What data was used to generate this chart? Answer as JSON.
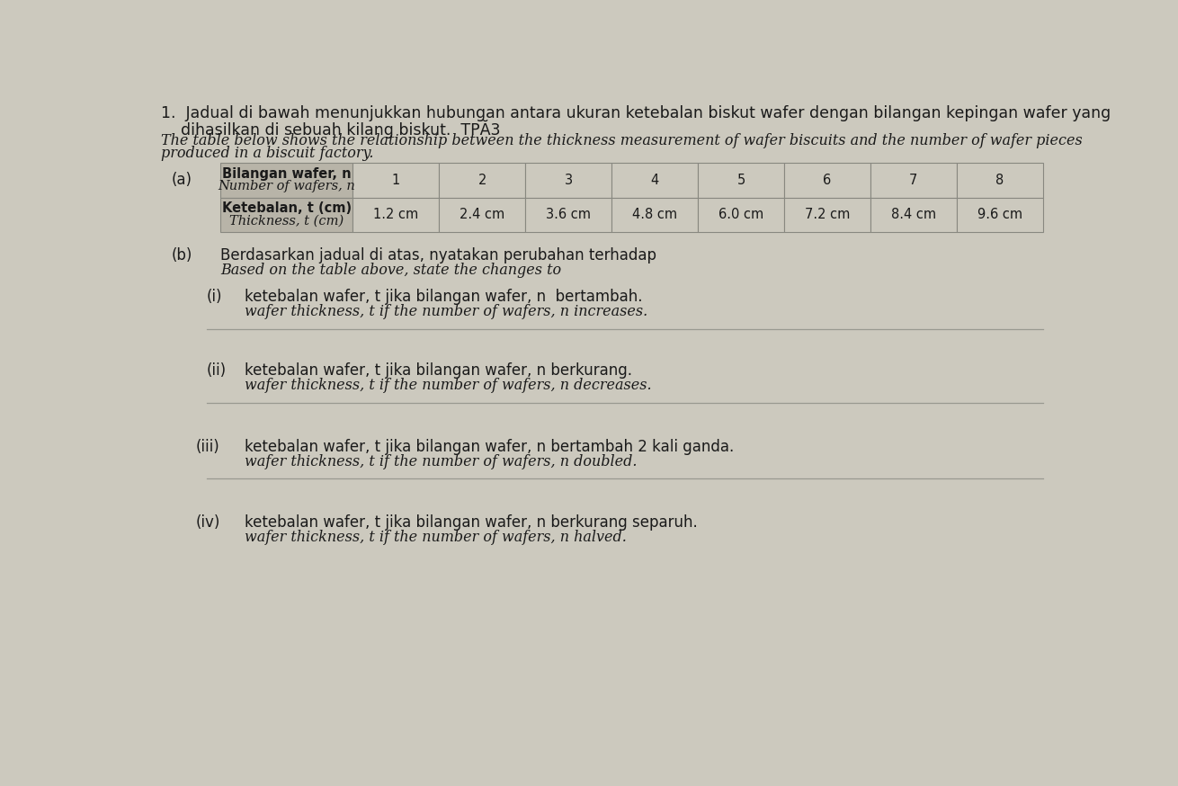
{
  "bg_color": "#ccc9be",
  "title_line1": "1.  Jadual di bawah menunjukkan hubungan antara ukuran ketebalan biskut wafer dengan bilangan kepingan wafer yang",
  "title_line2": "    dihasilkan di sebuah kilang biskut.  TPĂ3",
  "subtitle_line1": "The table below shows the relationship between the thickness measurement of wafer biscuits and the number of wafer pieces",
  "subtitle_line2": "produced in a biscuit factory.",
  "part_a_label": "(a)",
  "table_header_row1_col0_bold": "Bilangan wafer, n",
  "table_header_row1_col0_italic": "Number of wafers, n",
  "table_header_row2_col0_bold": "Ketebalan, t (cm)",
  "table_header_row2_col0_italic": "Thickness, t (cm)",
  "table_n_values": [
    "1",
    "2",
    "3",
    "4",
    "5",
    "6",
    "7",
    "8"
  ],
  "table_t_values": [
    "1.2 cm",
    "2.4 cm",
    "3.6 cm",
    "4.8 cm",
    "6.0 cm",
    "7.2 cm",
    "8.4 cm",
    "9.6 cm"
  ],
  "part_b_label": "(b)",
  "part_b_malay": "Berdasarkan jadual di atas, nyatakan perubahan terhadap",
  "part_b_english": "Based on the table above, state the changes to",
  "sub_i_label": "(i)",
  "sub_i_malay": "ketebalan wafer, t jika bilangan wafer, n  bertambah.",
  "sub_i_english": "wafer thickness, t if the number of wafers, n increases.",
  "sub_ii_label": "(ii)",
  "sub_ii_malay": "ketebalan wafer, t jika bilangan wafer, n berkurang.",
  "sub_ii_english": "wafer thickness, t if the number of wafers, n decreases.",
  "sub_iii_label": "(iii)",
  "sub_iii_malay": "ketebalan wafer, t jika bilangan wafer, n bertambah 2 kali ganda.",
  "sub_iii_english": "wafer thickness, t if the number of wafers, n doubled.",
  "sub_iv_label": "(iv)",
  "sub_iv_malay": "ketebalan wafer, t jika bilangan wafer, n berkurang separuh.",
  "sub_iv_english": "wafer thickness, t if the number of wafers, n halved.",
  "text_color": "#1a1a1a",
  "table_header_bg": "#b8b4a8",
  "table_data_bg": "#ccc9be",
  "table_border_color": "#888880",
  "answer_line_color": "#999990"
}
